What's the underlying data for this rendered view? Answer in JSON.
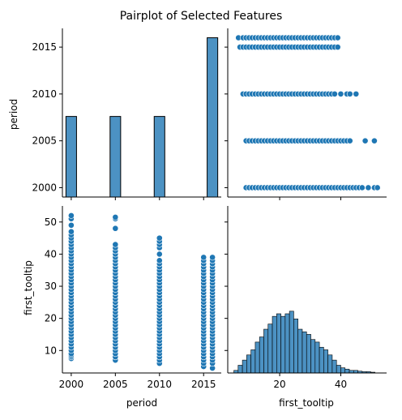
{
  "chart_data": {
    "type": "pairplot",
    "title": "Pairplot of Selected Features",
    "variables": [
      "period",
      "first_tooltip"
    ],
    "color": "#1f77b4",
    "hist_color": "#4c92c3",
    "panels": {
      "period_hist": {
        "type": "bar",
        "x_range": [
          1999,
          2017
        ],
        "bins": [
          {
            "x0": 1999.4,
            "x1": 2000.6,
            "height": 2007.6
          },
          {
            "x0": 2004.4,
            "x1": 2005.6,
            "height": 2007.6
          },
          {
            "x0": 2009.4,
            "x1": 2010.6,
            "height": 2007.6
          },
          {
            "x0": 2015.4,
            "x1": 2016.6,
            "height": 2016.0
          }
        ]
      },
      "period_vs_first_tooltip": {
        "type": "scatter",
        "x_label": "first_tooltip",
        "y_label": "period",
        "rows": [
          {
            "period": 2016,
            "x": [
              6.5,
              8,
              9,
              10,
              11,
              12,
              13,
              14,
              15,
              16,
              17,
              18,
              19,
              20,
              21,
              22,
              23,
              24,
              25,
              26,
              27,
              28,
              29,
              30,
              31,
              32,
              33,
              34,
              35,
              36,
              37,
              38,
              39
            ]
          },
          {
            "period": 2015,
            "x": [
              7,
              8,
              9,
              10,
              11,
              12,
              13,
              14,
              15,
              16,
              17,
              18,
              19,
              20,
              21,
              22,
              23,
              24,
              25,
              26,
              27,
              28,
              29,
              30,
              31,
              32,
              33,
              34,
              35,
              36,
              37,
              38,
              39
            ]
          },
          {
            "period": 2010,
            "x": [
              8,
              9,
              10,
              11,
              12,
              13,
              14,
              15,
              16,
              17,
              18,
              19,
              20,
              21,
              22,
              23,
              24,
              25,
              26,
              27,
              28,
              29,
              30,
              31,
              32,
              33,
              34,
              35,
              36,
              37,
              38,
              40,
              42,
              43,
              45
            ]
          },
          {
            "period": 2005,
            "x": [
              9,
              10,
              11,
              12,
              13,
              14,
              15,
              16,
              17,
              18,
              19,
              20,
              21,
              22,
              23,
              24,
              25,
              26,
              27,
              28,
              29,
              30,
              31,
              32,
              33,
              34,
              35,
              36,
              37,
              38,
              39,
              40,
              41,
              42,
              43,
              48,
              51
            ]
          },
          {
            "period": 2000,
            "x": [
              9,
              10,
              11,
              12,
              13,
              14,
              15,
              16,
              17,
              18,
              19,
              20,
              21,
              22,
              23,
              24,
              25,
              26,
              27,
              28,
              29,
              30,
              31,
              32,
              33,
              34,
              35,
              36,
              37,
              38,
              39,
              40,
              41,
              42,
              43,
              44,
              45,
              46,
              47,
              49,
              51,
              52
            ]
          }
        ]
      },
      "first_tooltip_vs_period": {
        "type": "scatter",
        "x_label": "period",
        "y_label": "first_tooltip",
        "columns": [
          {
            "period": 2000,
            "y": [
              7.5,
              8,
              8.5,
              9,
              10,
              11,
              12,
              13,
              14,
              15,
              16,
              17,
              18,
              19,
              20,
              21,
              22,
              23,
              24,
              25,
              26,
              27,
              28,
              29,
              30,
              31,
              32,
              33,
              34,
              35,
              36,
              37,
              38,
              39,
              40,
              41,
              42,
              43,
              44,
              45,
              46,
              47,
              49,
              51,
              52
            ]
          },
          {
            "period": 2005,
            "y": [
              7,
              8,
              9,
              10,
              11,
              12,
              13,
              14,
              15,
              16,
              17,
              18,
              19,
              20,
              21,
              22,
              23,
              24,
              25,
              26,
              27,
              28,
              29,
              30,
              31,
              32,
              33,
              34,
              35,
              36,
              37,
              38,
              39,
              40,
              41,
              42,
              43,
              48,
              51,
              51.5
            ]
          },
          {
            "period": 2010,
            "y": [
              6,
              7,
              8,
              9,
              10,
              11,
              12,
              13,
              14,
              15,
              16,
              17,
              18,
              19,
              20,
              21,
              22,
              23,
              24,
              25,
              26,
              27,
              28,
              29,
              30,
              31,
              32,
              33,
              34,
              35,
              36,
              37,
              38,
              40,
              42,
              43,
              44,
              45
            ]
          },
          {
            "period": 2015,
            "y": [
              5,
              6,
              7,
              8,
              9,
              10,
              11,
              12,
              13,
              14,
              15,
              16,
              17,
              18,
              19,
              20,
              21,
              22,
              23,
              24,
              25,
              26,
              27,
              28,
              29,
              30,
              31,
              32,
              33,
              34,
              35,
              36,
              37,
              38,
              39
            ]
          },
          {
            "period": 2016,
            "y": [
              4.5,
              6,
              7,
              8,
              9,
              10,
              11,
              12,
              13,
              14,
              15,
              16,
              17,
              18,
              19,
              20,
              21,
              22,
              23,
              24,
              25,
              26,
              27,
              28,
              29,
              30,
              31,
              32,
              33,
              34,
              35,
              36,
              37,
              38,
              39
            ]
          }
        ]
      },
      "first_tooltip_hist": {
        "type": "bar",
        "bin_width": 1.4,
        "bins": [
          {
            "x0": 5.0,
            "count": 1
          },
          {
            "x0": 6.4,
            "count": 3
          },
          {
            "x0": 7.8,
            "count": 5
          },
          {
            "x0": 9.2,
            "count": 7
          },
          {
            "x0": 10.6,
            "count": 9
          },
          {
            "x0": 12.0,
            "count": 12
          },
          {
            "x0": 13.4,
            "count": 14
          },
          {
            "x0": 14.8,
            "count": 17
          },
          {
            "x0": 16.2,
            "count": 19
          },
          {
            "x0": 17.6,
            "count": 22
          },
          {
            "x0": 19.0,
            "count": 23
          },
          {
            "x0": 20.4,
            "count": 22
          },
          {
            "x0": 21.8,
            "count": 23
          },
          {
            "x0": 23.2,
            "count": 24
          },
          {
            "x0": 24.6,
            "count": 21
          },
          {
            "x0": 26.0,
            "count": 17
          },
          {
            "x0": 27.4,
            "count": 16
          },
          {
            "x0": 28.8,
            "count": 15
          },
          {
            "x0": 30.2,
            "count": 13
          },
          {
            "x0": 31.6,
            "count": 12
          },
          {
            "x0": 33.0,
            "count": 10
          },
          {
            "x0": 34.4,
            "count": 9
          },
          {
            "x0": 35.8,
            "count": 7
          },
          {
            "x0": 37.2,
            "count": 5
          },
          {
            "x0": 38.6,
            "count": 3
          },
          {
            "x0": 40.0,
            "count": 2
          },
          {
            "x0": 41.4,
            "count": 1.5
          },
          {
            "x0": 42.8,
            "count": 1
          },
          {
            "x0": 44.2,
            "count": 1
          },
          {
            "x0": 45.6,
            "count": 0.7
          },
          {
            "x0": 47.0,
            "count": 0.5
          },
          {
            "x0": 48.4,
            "count": 0.5
          },
          {
            "x0": 49.8,
            "count": 0.3
          }
        ]
      }
    },
    "axes": {
      "period": {
        "range": [
          1999,
          2017
        ],
        "ticks": [
          2000,
          2005,
          2010,
          2015
        ],
        "label": "period"
      },
      "first_tooltip": {
        "range": [
          3,
          55
        ],
        "ticks": [
          10,
          20,
          30,
          40,
          50
        ],
        "label": "first_tooltip"
      },
      "first_tooltip_x_ticks": [
        20,
        40
      ]
    },
    "grid": false,
    "legend": "none"
  }
}
